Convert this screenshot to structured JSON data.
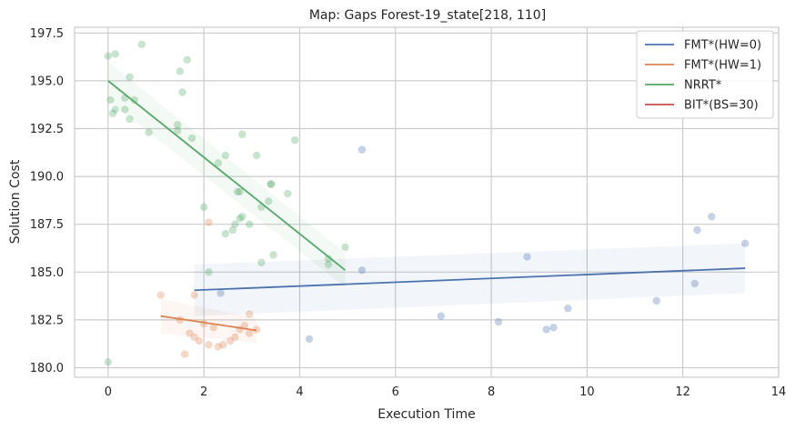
{
  "chart_data": {
    "type": "scatter",
    "title": "Map: Gaps Forest-19_state[218, 110]",
    "xlabel": "Execution Time",
    "ylabel": "Solution Cost",
    "xlim": [
      -0.7,
      14
    ],
    "ylim": [
      179.5,
      197.8
    ],
    "xticks": [
      "0",
      "2",
      "4",
      "6",
      "8",
      "10",
      "12",
      "14"
    ],
    "yticks": [
      "180.0",
      "182.5",
      "185.0",
      "187.5",
      "190.0",
      "192.5",
      "195.0",
      "197.5"
    ],
    "xtick_values": [
      0,
      2,
      4,
      6,
      8,
      10,
      12,
      14
    ],
    "ytick_values": [
      180.0,
      182.5,
      185.0,
      187.5,
      190.0,
      192.5,
      195.0,
      197.5
    ],
    "grid": true,
    "legend_position": "top-right",
    "series": [
      {
        "name": "FMT*(HW=0)",
        "color": "#4c72b0",
        "points": [
          [
            2.35,
            183.9
          ],
          [
            4.2,
            181.5
          ],
          [
            5.3,
            191.4
          ],
          [
            5.3,
            185.1
          ],
          [
            6.95,
            182.7
          ],
          [
            8.15,
            182.4
          ],
          [
            8.75,
            185.8
          ],
          [
            9.15,
            182.0
          ],
          [
            9.3,
            182.1
          ],
          [
            9.6,
            183.1
          ],
          [
            11.45,
            183.5
          ],
          [
            12.25,
            184.4
          ],
          [
            12.3,
            187.2
          ],
          [
            12.6,
            187.9
          ],
          [
            13.3,
            186.5
          ]
        ],
        "fit": [
          [
            1.8,
            184.05
          ],
          [
            13.3,
            185.2
          ]
        ],
        "ci_upper": [
          [
            1.8,
            185.4
          ],
          [
            13.3,
            186.5
          ]
        ],
        "ci_lower": [
          [
            1.8,
            182.7
          ],
          [
            13.3,
            183.9
          ]
        ]
      },
      {
        "name": "FMT*(HW=1)",
        "color": "#dd8452",
        "points": [
          [
            1.1,
            183.8
          ],
          [
            1.8,
            183.8
          ],
          [
            1.5,
            182.5
          ],
          [
            1.6,
            180.7
          ],
          [
            1.7,
            181.8
          ],
          [
            1.8,
            181.6
          ],
          [
            1.9,
            181.4
          ],
          [
            2.0,
            182.3
          ],
          [
            2.1,
            181.2
          ],
          [
            2.1,
            187.6
          ],
          [
            2.2,
            182.1
          ],
          [
            2.3,
            181.1
          ],
          [
            2.4,
            181.2
          ],
          [
            2.55,
            181.4
          ],
          [
            2.65,
            181.6
          ],
          [
            2.75,
            182.0
          ],
          [
            2.85,
            182.2
          ],
          [
            2.95,
            181.8
          ],
          [
            2.95,
            182.8
          ],
          [
            3.1,
            182.0
          ]
        ],
        "fit": [
          [
            1.1,
            182.7
          ],
          [
            3.1,
            181.95
          ]
        ],
        "ci_upper": [
          [
            1.1,
            183.6
          ],
          [
            3.1,
            182.6
          ]
        ],
        "ci_lower": [
          [
            1.1,
            181.8
          ],
          [
            3.1,
            181.3
          ]
        ]
      },
      {
        "name": "NRRT*",
        "color": "#55a868",
        "points": [
          [
            0.0,
            196.3
          ],
          [
            0.05,
            194.0
          ],
          [
            0.1,
            193.3
          ],
          [
            0.15,
            193.5
          ],
          [
            0.15,
            196.4
          ],
          [
            0.35,
            194.1
          ],
          [
            0.35,
            193.5
          ],
          [
            0.45,
            193.0
          ],
          [
            0.45,
            195.2
          ],
          [
            0.55,
            194.0
          ],
          [
            0.7,
            196.9
          ],
          [
            0.85,
            192.3
          ],
          [
            1.45,
            192.7
          ],
          [
            1.45,
            192.4
          ],
          [
            1.5,
            195.5
          ],
          [
            1.55,
            194.4
          ],
          [
            1.65,
            196.1
          ],
          [
            1.75,
            192.0
          ],
          [
            2.0,
            188.4
          ],
          [
            2.1,
            185.0
          ],
          [
            2.3,
            190.7
          ],
          [
            2.45,
            191.1
          ],
          [
            2.45,
            187.0
          ],
          [
            2.6,
            187.2
          ],
          [
            2.65,
            187.5
          ],
          [
            2.7,
            189.2
          ],
          [
            2.75,
            187.8
          ],
          [
            2.75,
            189.2
          ],
          [
            2.8,
            192.2
          ],
          [
            2.8,
            187.9
          ],
          [
            2.95,
            187.5
          ],
          [
            3.1,
            191.1
          ],
          [
            3.2,
            188.4
          ],
          [
            3.2,
            185.5
          ],
          [
            3.35,
            188.7
          ],
          [
            3.4,
            189.6
          ],
          [
            3.4,
            189.6
          ],
          [
            3.45,
            185.9
          ],
          [
            3.75,
            189.1
          ],
          [
            3.9,
            191.9
          ],
          [
            4.6,
            185.7
          ],
          [
            4.6,
            185.4
          ],
          [
            4.95,
            186.3
          ],
          [
            0.0,
            180.3
          ]
        ],
        "fit": [
          [
            0.0,
            195.0
          ],
          [
            4.95,
            185.1
          ]
        ],
        "ci_upper": [
          [
            0.0,
            196.0
          ],
          [
            4.95,
            186.0
          ]
        ],
        "ci_lower": [
          [
            0.0,
            194.0
          ],
          [
            4.95,
            184.2
          ]
        ]
      },
      {
        "name": "BIT*(BS=30)",
        "color": "#c44e52",
        "points": [],
        "fit": [],
        "ci_upper": [],
        "ci_lower": []
      }
    ]
  }
}
